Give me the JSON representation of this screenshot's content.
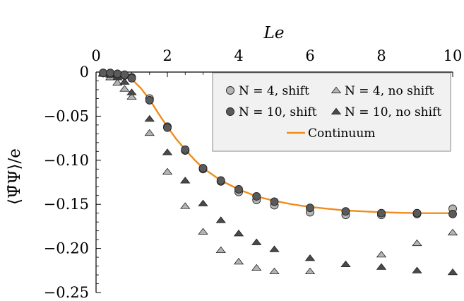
{
  "chart_data": {
    "type": "scatter",
    "title": "",
    "xlabel": "Le",
    "ylabel": "⟨Ψ̄Ψ⟩/e",
    "xlim": [
      0,
      10
    ],
    "ylim": [
      -0.25,
      0
    ],
    "x_ticks": [
      0,
      2,
      4,
      6,
      8,
      10
    ],
    "x_tick_labels": [
      "0",
      "2",
      "4",
      "6",
      "8",
      "10"
    ],
    "y_ticks": [
      0,
      -0.05,
      -0.1,
      -0.15,
      -0.2,
      -0.25
    ],
    "y_tick_labels": [
      "0",
      "−0.05",
      "−0.10",
      "−0.15",
      "−0.20",
      "−0.25"
    ],
    "grid": false,
    "legend_position": "top-right",
    "colors": {
      "n4_shift": "#b4b4b4",
      "n10_shift": "#5a5a5a",
      "n4_noshift": "#b4b4b4",
      "n10_noshift": "#4a4a4a",
      "continuum": "#f08c1e"
    },
    "series": [
      {
        "name": "N = 4, shift",
        "marker": "circle",
        "x": [
          0.2,
          0.4,
          0.6,
          0.8,
          1.0,
          1.5,
          2.0,
          2.5,
          3.0,
          3.5,
          4.0,
          4.5,
          5.0,
          6.0,
          7.0,
          8.0,
          9.0,
          10.0
        ],
        "y": [
          -0.001,
          -0.002,
          -0.003,
          -0.004,
          -0.006,
          -0.03,
          -0.062,
          -0.089,
          -0.11,
          -0.124,
          -0.136,
          -0.145,
          -0.151,
          -0.159,
          -0.162,
          -0.162,
          -0.161,
          -0.155
        ]
      },
      {
        "name": "N = 10, shift",
        "marker": "circle",
        "x": [
          0.2,
          0.4,
          0.6,
          0.8,
          1.0,
          1.5,
          2.0,
          2.5,
          3.0,
          3.5,
          4.0,
          4.5,
          5.0,
          6.0,
          7.0,
          8.0,
          9.0,
          10.0
        ],
        "y": [
          -0.001,
          -0.001,
          -0.002,
          -0.003,
          -0.007,
          -0.032,
          -0.063,
          -0.088,
          -0.109,
          -0.123,
          -0.133,
          -0.141,
          -0.147,
          -0.154,
          -0.158,
          -0.16,
          -0.16,
          -0.161
        ]
      },
      {
        "name": "N = 4, no shift",
        "marker": "triangle",
        "x": [
          0.2,
          0.4,
          0.6,
          0.8,
          1.0,
          1.5,
          2.0,
          2.5,
          3.0,
          3.5,
          4.0,
          4.5,
          5.0,
          6.0,
          8.0,
          9.0,
          10.0
        ],
        "y": [
          -0.002,
          -0.006,
          -0.012,
          -0.019,
          -0.028,
          -0.069,
          -0.113,
          -0.152,
          -0.181,
          -0.202,
          -0.215,
          -0.222,
          -0.226,
          -0.226,
          -0.207,
          -0.194,
          -0.182
        ]
      },
      {
        "name": "N = 10, no shift",
        "marker": "triangle",
        "x": [
          0.2,
          0.4,
          0.6,
          0.8,
          1.0,
          1.5,
          2.0,
          2.5,
          3.0,
          3.5,
          4.0,
          4.5,
          5.0,
          6.0,
          7.0,
          8.0,
          9.0,
          10.0
        ],
        "y": [
          -0.001,
          -0.003,
          -0.006,
          -0.011,
          -0.023,
          -0.053,
          -0.091,
          -0.123,
          -0.149,
          -0.168,
          -0.183,
          -0.193,
          -0.201,
          -0.211,
          -0.218,
          -0.221,
          -0.225,
          -0.227
        ]
      },
      {
        "name": "Continuum",
        "marker": "line",
        "x": [
          1.0,
          1.25,
          1.5,
          1.75,
          2.0,
          2.25,
          2.5,
          2.75,
          3.0,
          3.5,
          4.0,
          4.5,
          5.0,
          5.5,
          6.0,
          7.0,
          8.0,
          9.0,
          10.0
        ],
        "y": [
          -0.008,
          -0.018,
          -0.031,
          -0.047,
          -0.062,
          -0.076,
          -0.088,
          -0.099,
          -0.109,
          -0.123,
          -0.133,
          -0.141,
          -0.146,
          -0.15,
          -0.153,
          -0.157,
          -0.159,
          -0.16,
          -0.16
        ]
      }
    ]
  }
}
